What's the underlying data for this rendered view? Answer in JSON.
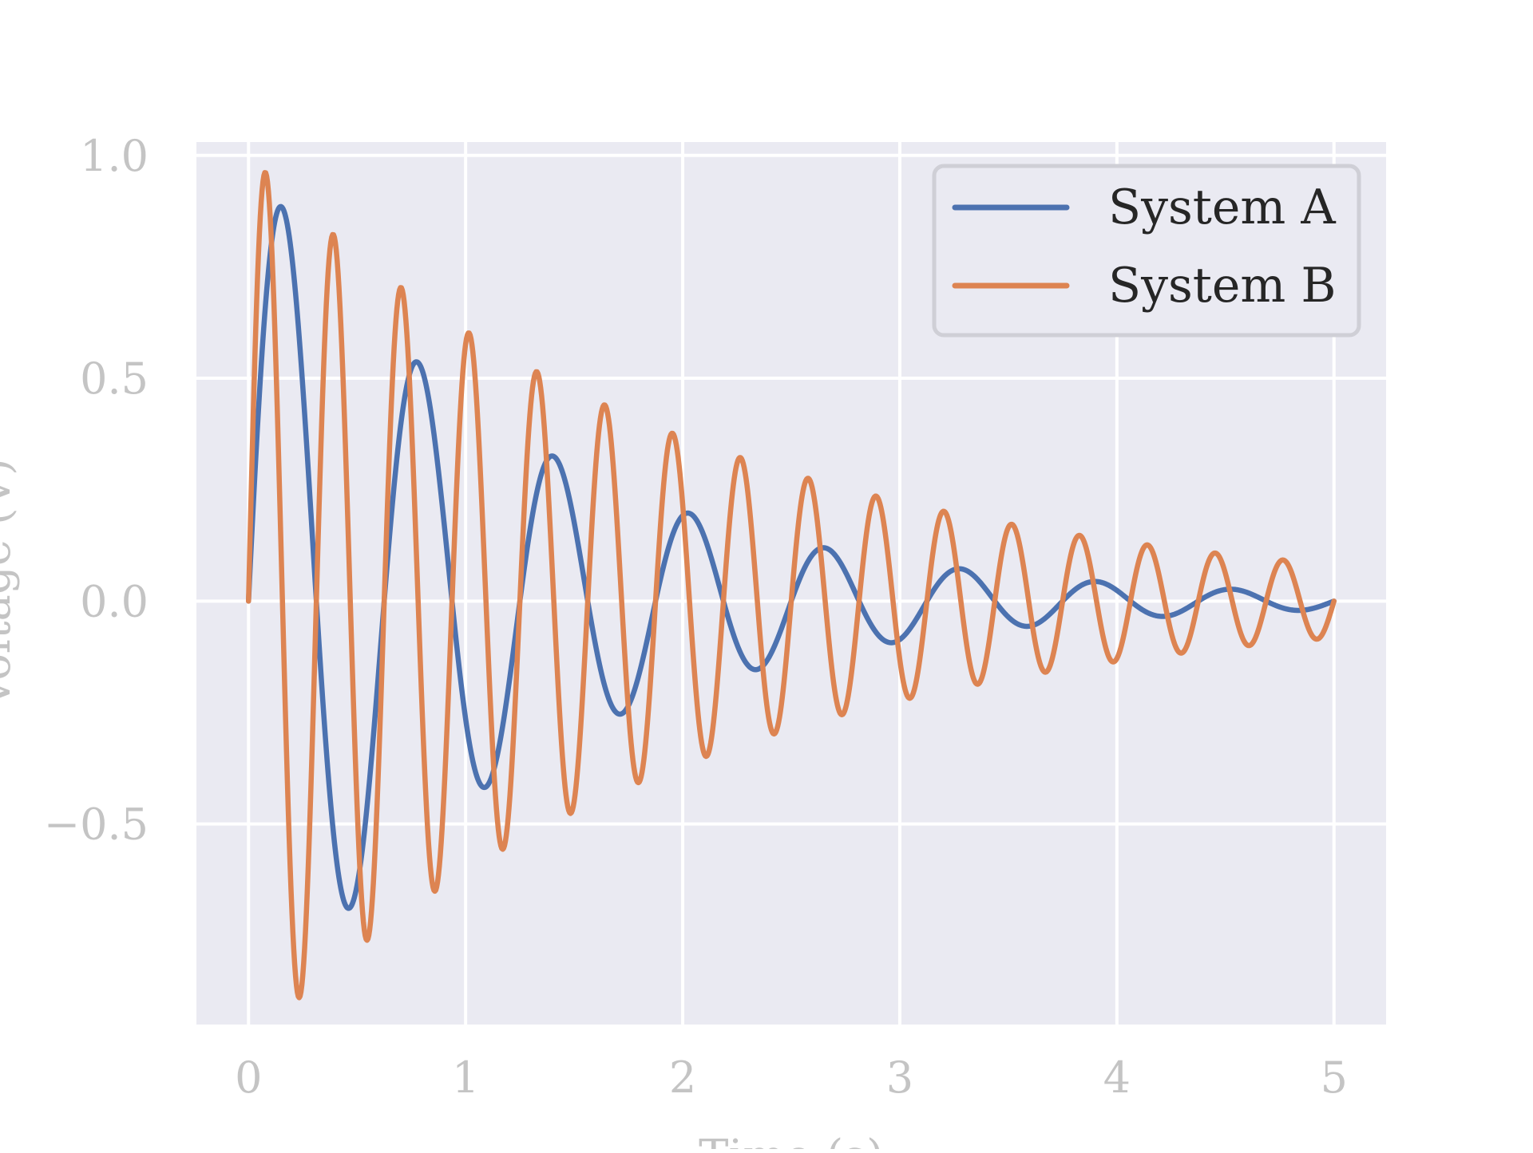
{
  "chart_data": {
    "type": "line",
    "title": "",
    "xlabel": "Time (s)",
    "ylabel": "Voltage (V)",
    "xlim": [
      -0.24,
      5.24
    ],
    "ylim": [
      -0.95,
      1.03
    ],
    "xticks": [
      0,
      1,
      2,
      3,
      4,
      5
    ],
    "xtick_labels": [
      "0",
      "1",
      "2",
      "3",
      "4",
      "5"
    ],
    "yticks": [
      -0.5,
      0.0,
      0.5,
      1.0
    ],
    "ytick_labels": [
      "−0.5",
      "0.0",
      "0.5",
      "1.0"
    ],
    "grid": true,
    "legend_position": "top-right",
    "background": "#eaeaf2",
    "series": [
      {
        "name": "System A",
        "color": "#4c72b0",
        "amplitude": 1.0,
        "decay_rate": 0.8,
        "frequency_hz": 1.6,
        "formula": "exp(-0.8 t) sin(2π·1.6 t)",
        "x_range": [
          0,
          5
        ]
      },
      {
        "name": "System B",
        "color": "#dd8452",
        "amplitude": 1.0,
        "decay_rate": 0.5,
        "frequency_hz": 3.2,
        "formula": "exp(-0.5 t) sin(2π·3.2 t)",
        "x_range": [
          0,
          5
        ]
      }
    ]
  }
}
